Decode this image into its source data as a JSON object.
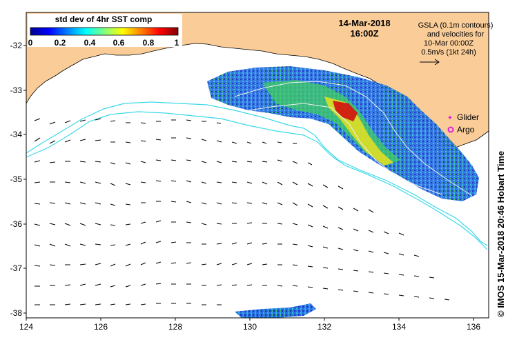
{
  "title_date": "14-Mar-2018",
  "title_time": "16:00Z",
  "colorbar": {
    "label": "std dev of 4hr SST comp",
    "ticks": [
      "0",
      "0.2",
      "0.4",
      "0.6",
      "0.8",
      "1"
    ]
  },
  "gsla_note": [
    "GSLA (0.1m contours)",
    "and velocities for",
    "10-Mar 00:00Z",
    "0.5m/s (1kt 24h)"
  ],
  "legend": {
    "glider": "Glider",
    "argo": "Argo"
  },
  "credit": "© IMOS 15-Mar-2018 20:46 Hobart Time",
  "axes": {
    "lon_ticks": [
      "124",
      "126",
      "128",
      "130",
      "132",
      "134",
      "136"
    ],
    "lat_ticks": [
      "-32",
      "-33",
      "-34",
      "-35",
      "-36",
      "-37",
      "-38"
    ]
  },
  "colors": {
    "land": "#f9cc98",
    "contour": "#3ad8e8",
    "glider": "#e020e0",
    "argo": "#e020e0"
  }
}
